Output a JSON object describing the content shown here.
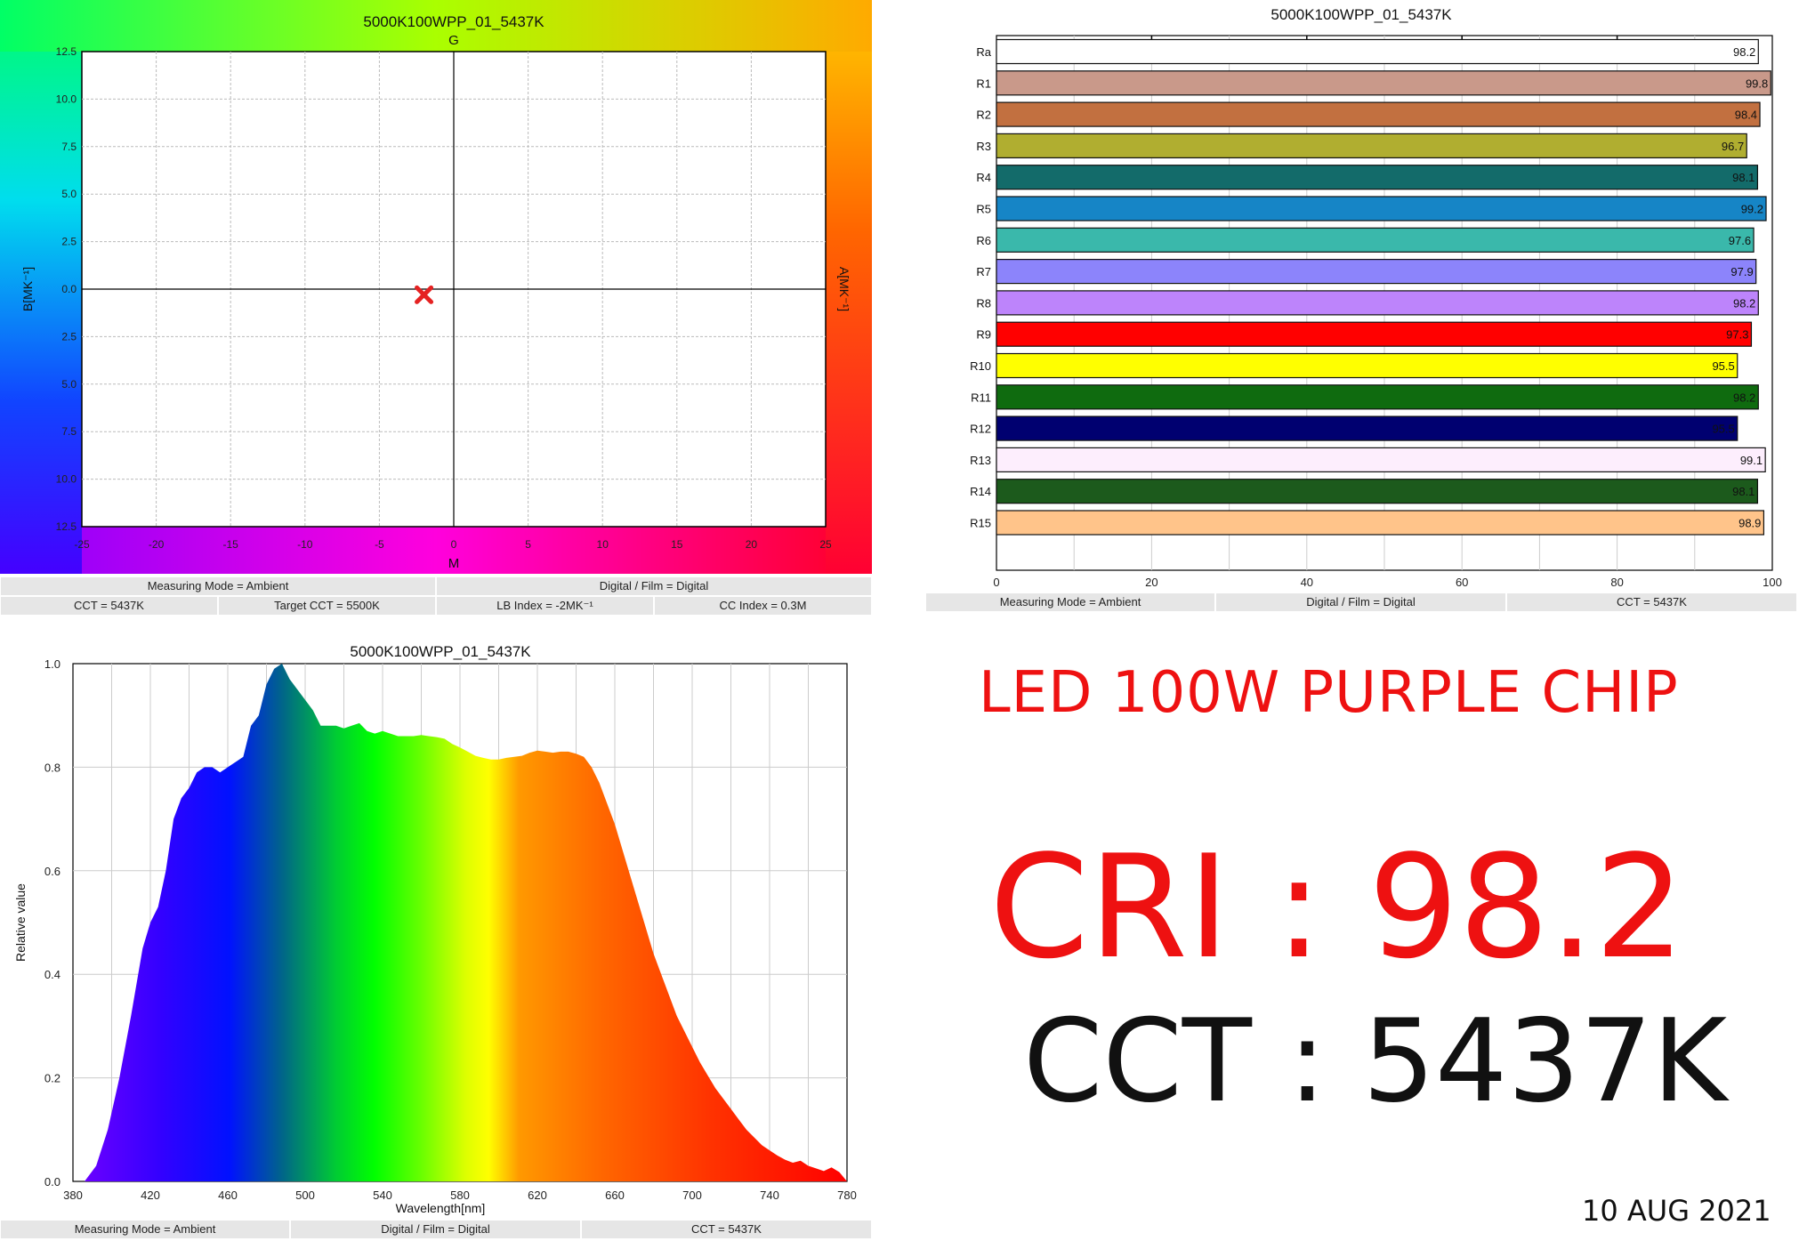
{
  "colorimeter": {
    "title": "5000K100WPP_01_5437K",
    "label_top": "G",
    "label_bottom": "M",
    "label_left": "B[MK⁻¹]",
    "label_right": "A[MK⁻¹]",
    "info": {
      "measuring_mode": "Measuring Mode = Ambient",
      "digital_film": "Digital / Film = Digital",
      "cct": "CCT = 5437K",
      "target_cct": "Target CCT = 5500K",
      "lb_index": "LB Index = -2MK⁻¹",
      "cc_index": "CC Index = 0.3M"
    }
  },
  "cri_chart": {
    "title": "5000K100WPP_01_5437K",
    "info": {
      "measuring_mode": "Measuring Mode = Ambient",
      "digital_film": "Digital / Film = Digital",
      "cct": "CCT = 5437K"
    }
  },
  "spectrum": {
    "title": "5000K100WPP_01_5437K",
    "info": {
      "measuring_mode": "Measuring Mode = Ambient",
      "digital_film": "Digital / Film = Digital",
      "cct": "CCT = 5437K"
    }
  },
  "headline": {
    "product": "LED 100W PURPLE CHIP",
    "cri": "CRI : 98.2",
    "cct": "CCT : 5437K",
    "date": "10 AUG 2021",
    "accent_color": "#ee1111"
  },
  "chart_data": [
    {
      "type": "scatter",
      "title": "5000K100WPP_01_5437K",
      "xlabel": "M",
      "ylabel": "B[MK⁻¹]",
      "xlim": [
        -25,
        25
      ],
      "ylim": [
        -12.5,
        12.5
      ],
      "x_ticks": [
        -25,
        -20,
        -15,
        -10,
        -5,
        0,
        5,
        10,
        15,
        20,
        25
      ],
      "y_tick_values": [
        12.5,
        10,
        7.5,
        5,
        2.5,
        0,
        -2.5,
        -5,
        -7.5,
        -10,
        -12.5
      ],
      "y_tick_labels": [
        "12.5",
        "10.0",
        "7.5",
        "5.0",
        "2.5",
        "0.0",
        "2.5",
        "5.0",
        "7.5",
        "10.0",
        "12.5"
      ],
      "grid": true,
      "points": [
        {
          "x": -2,
          "y": -0.3
        }
      ],
      "marker_color": "#e52222"
    },
    {
      "type": "bar",
      "orientation": "horizontal",
      "title": "5000K100WPP_01_5437K",
      "xlim": [
        0,
        100
      ],
      "x_ticks": [
        0,
        20,
        40,
        60,
        80,
        100
      ],
      "grid": true,
      "categories": [
        "Ra",
        "R1",
        "R2",
        "R3",
        "R4",
        "R5",
        "R6",
        "R7",
        "R8",
        "R9",
        "R10",
        "R11",
        "R12",
        "R13",
        "R14",
        "R15"
      ],
      "values": [
        98.2,
        99.8,
        98.4,
        96.7,
        98.1,
        99.2,
        97.6,
        97.9,
        98.2,
        97.3,
        95.5,
        98.2,
        95.5,
        99.1,
        98.1,
        98.9
      ],
      "value_labels": [
        "98.2",
        "99.8",
        "98.4",
        "96.7",
        "98.1",
        "99.2",
        "97.6",
        "97.9",
        "98.2",
        "97.3",
        "95.5",
        "98.2",
        "95.5",
        "99.1",
        "98.1",
        "98.9"
      ],
      "colors": [
        "#ffffff",
        "#c9998a",
        "#c27040",
        "#b0ae30",
        "#136b6a",
        "#1685c6",
        "#3ab8ab",
        "#8c84fb",
        "#bd84fb",
        "#ff0000",
        "#ffff00",
        "#0f6b0f",
        "#000070",
        "#fdeefd",
        "#1c5a1c",
        "#ffc48a"
      ]
    },
    {
      "type": "area",
      "title": "5000K100WPP_01_5437K",
      "xlabel": "Wavelength[nm]",
      "ylabel": "Relative value",
      "xlim": [
        380,
        780
      ],
      "ylim": [
        0,
        1
      ],
      "x_ticks": [
        380,
        420,
        460,
        500,
        540,
        580,
        620,
        660,
        700,
        740,
        780
      ],
      "y_ticks": [
        0.0,
        0.2,
        0.4,
        0.6,
        0.8,
        1.0
      ],
      "grid": true,
      "x": [
        386,
        392,
        398,
        404,
        410,
        416,
        420,
        424,
        428,
        432,
        436,
        440,
        444,
        448,
        452,
        456,
        460,
        464,
        468,
        472,
        476,
        480,
        484,
        488,
        492,
        496,
        500,
        504,
        508,
        512,
        516,
        520,
        524,
        528,
        532,
        536,
        540,
        544,
        548,
        552,
        556,
        560,
        564,
        568,
        572,
        576,
        580,
        584,
        588,
        592,
        596,
        600,
        604,
        608,
        612,
        616,
        620,
        624,
        628,
        632,
        636,
        640,
        644,
        648,
        652,
        656,
        660,
        664,
        668,
        672,
        676,
        680,
        684,
        688,
        692,
        696,
        700,
        704,
        708,
        712,
        716,
        720,
        724,
        728,
        732,
        736,
        740,
        744,
        748,
        752,
        756,
        760,
        764,
        768,
        772,
        776,
        780
      ],
      "values": [
        0.0,
        0.03,
        0.1,
        0.2,
        0.32,
        0.45,
        0.5,
        0.53,
        0.6,
        0.7,
        0.74,
        0.76,
        0.79,
        0.8,
        0.8,
        0.79,
        0.8,
        0.81,
        0.82,
        0.88,
        0.9,
        0.96,
        0.99,
        1.0,
        0.97,
        0.95,
        0.93,
        0.91,
        0.88,
        0.88,
        0.88,
        0.875,
        0.88,
        0.885,
        0.87,
        0.865,
        0.87,
        0.865,
        0.86,
        0.86,
        0.86,
        0.862,
        0.86,
        0.858,
        0.855,
        0.845,
        0.838,
        0.83,
        0.822,
        0.818,
        0.815,
        0.815,
        0.818,
        0.82,
        0.822,
        0.828,
        0.832,
        0.83,
        0.828,
        0.83,
        0.83,
        0.826,
        0.82,
        0.8,
        0.77,
        0.73,
        0.69,
        0.64,
        0.59,
        0.54,
        0.49,
        0.44,
        0.4,
        0.36,
        0.32,
        0.29,
        0.26,
        0.23,
        0.205,
        0.18,
        0.16,
        0.14,
        0.12,
        0.1,
        0.085,
        0.07,
        0.06,
        0.05,
        0.042,
        0.036,
        0.04,
        0.03,
        0.025,
        0.02,
        0.027,
        0.018,
        0.0
      ]
    }
  ]
}
